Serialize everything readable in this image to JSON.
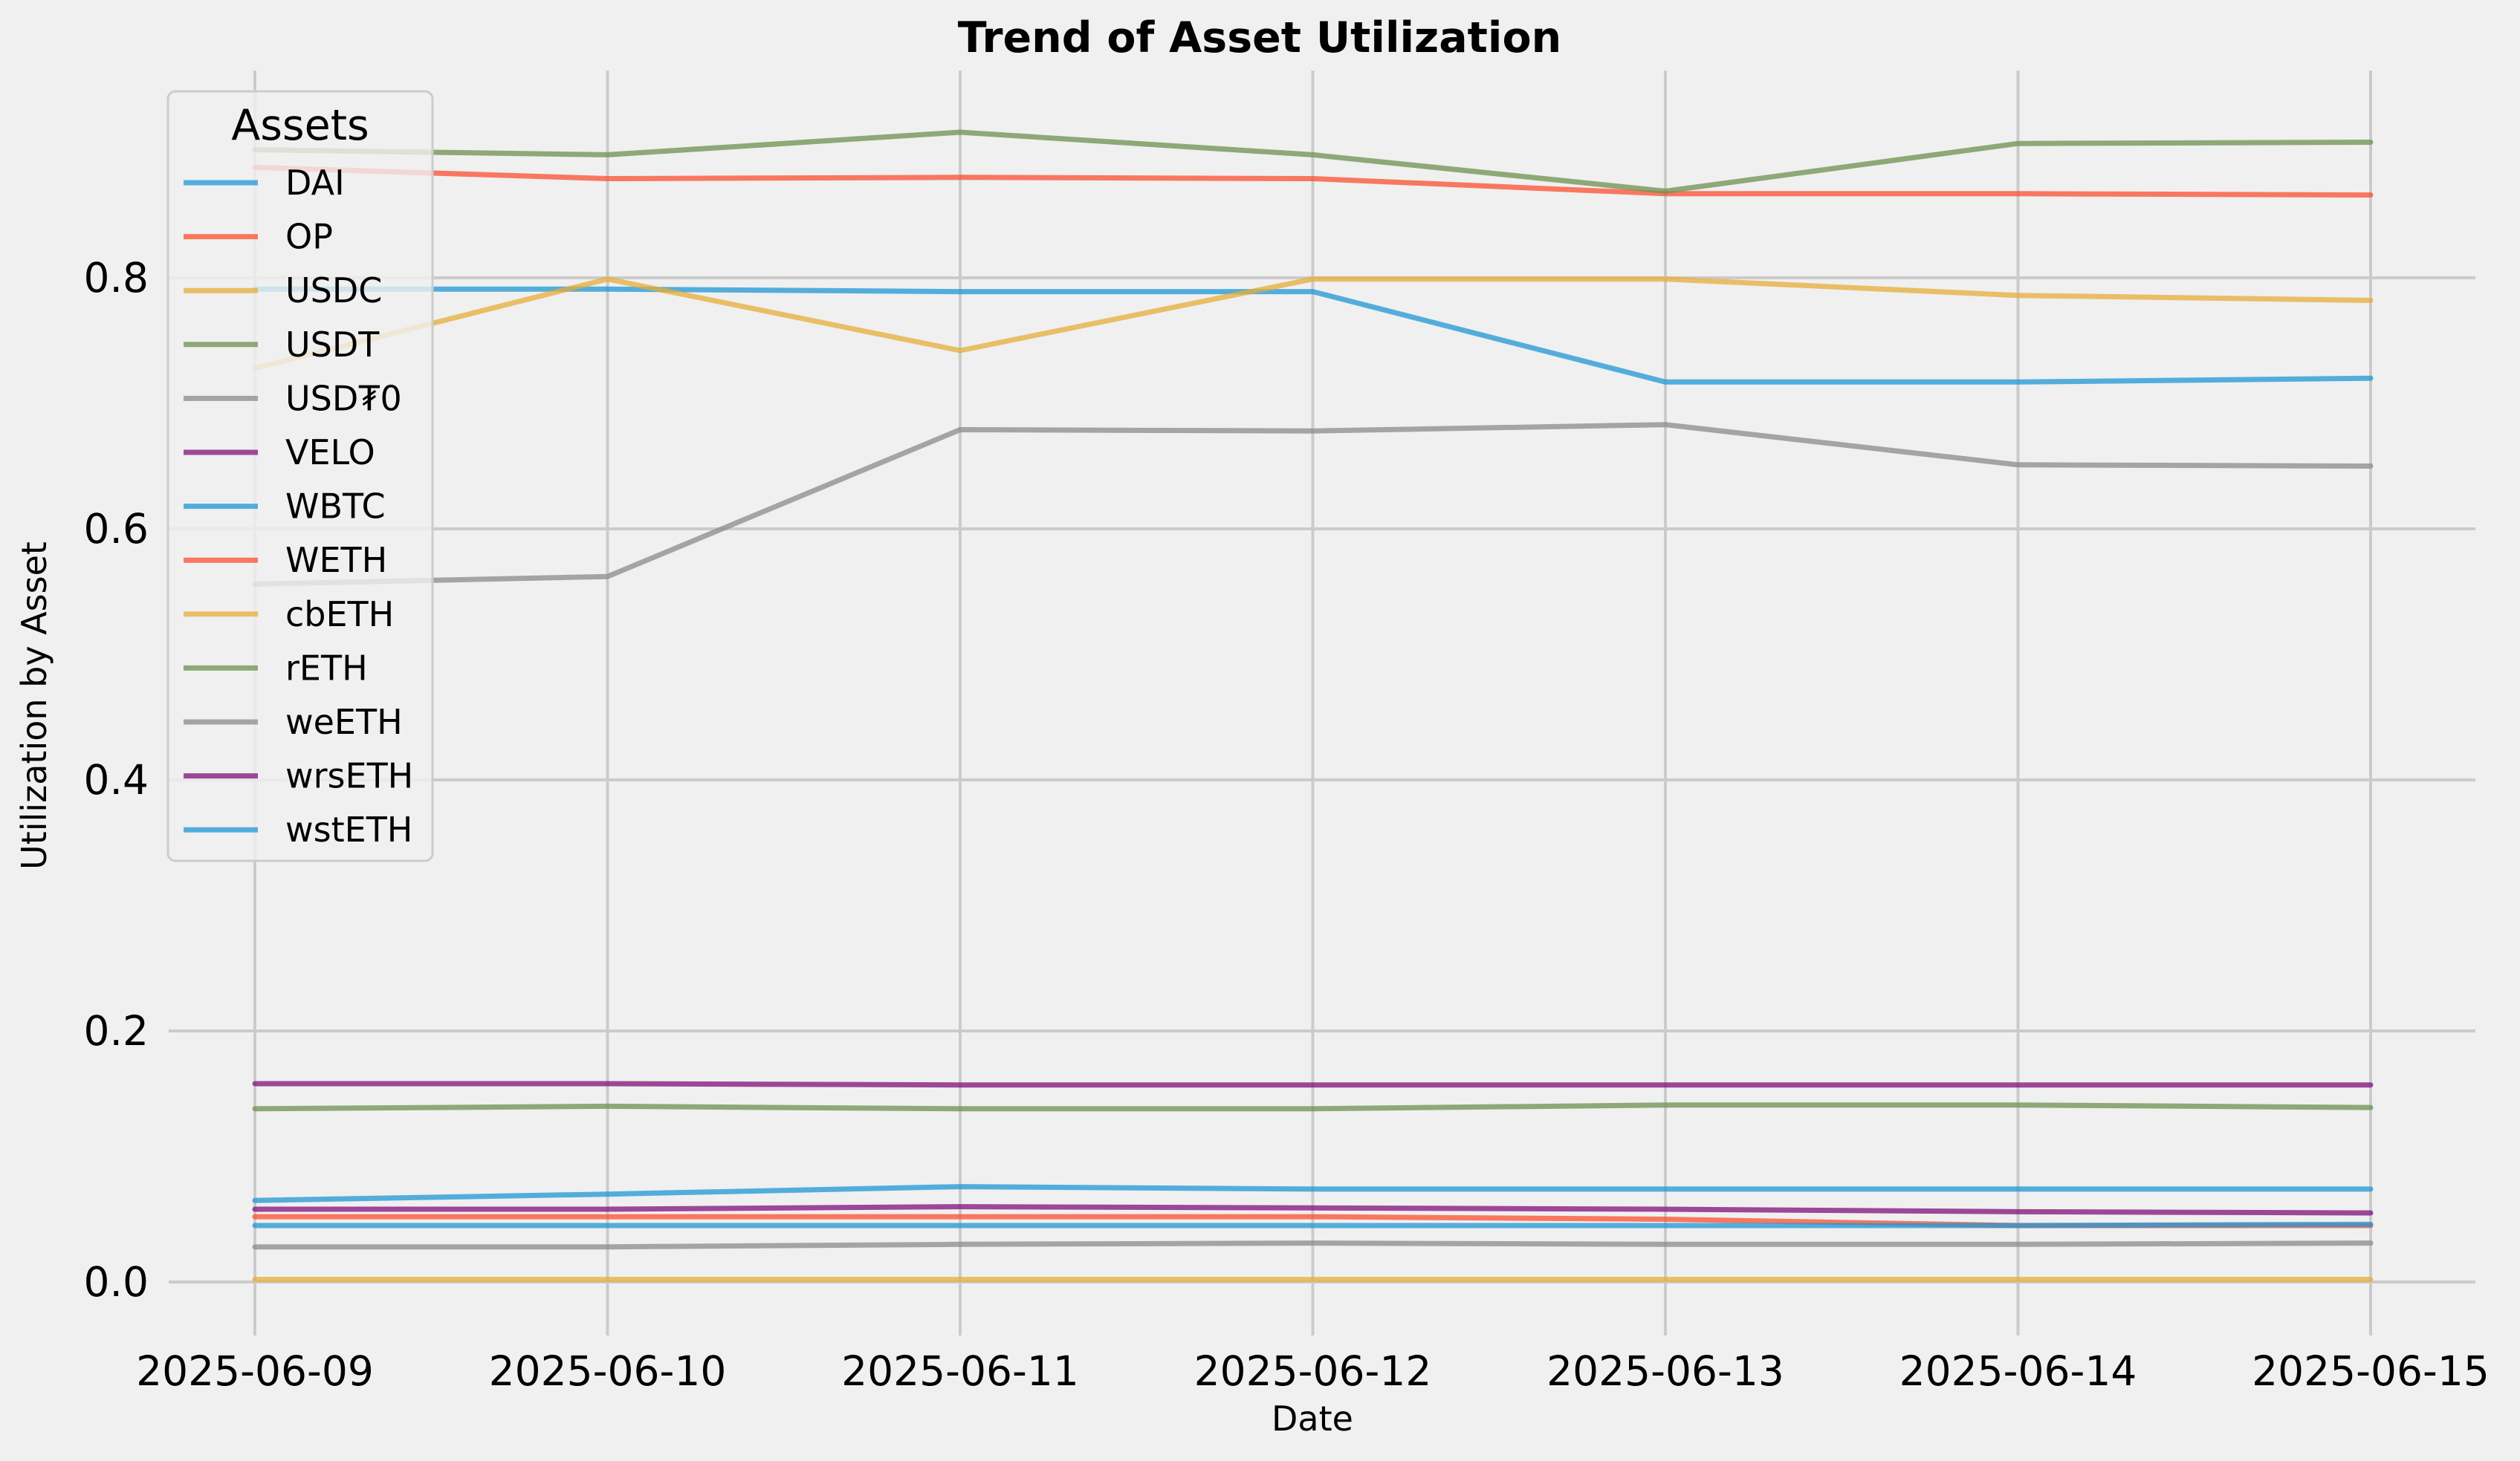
{
  "chart_data": {
    "type": "line",
    "title": "Trend of Asset Utilization",
    "xlabel": "Date",
    "ylabel": "Utilization by Asset",
    "x": [
      "2025-06-09",
      "2025-06-10",
      "2025-06-11",
      "2025-06-12",
      "2025-06-13",
      "2025-06-14",
      "2025-06-15"
    ],
    "y_ticks": [
      0.0,
      0.2,
      0.4,
      0.6,
      0.8
    ],
    "ylim": [
      -0.02,
      0.95
    ],
    "grid": true,
    "legend": {
      "title": "Assets",
      "placement": "upper-left"
    },
    "series": [
      {
        "name": "DAI",
        "color": "#1f97d4",
        "values": [
          0.065,
          0.07,
          0.076,
          0.074,
          0.074,
          0.074,
          0.074
        ]
      },
      {
        "name": "OP",
        "color": "#fc4f30",
        "values": [
          0.052,
          0.052,
          0.052,
          0.052,
          0.05,
          0.045,
          0.045
        ]
      },
      {
        "name": "USDC",
        "color": "#e5ae38",
        "values": [
          0.002,
          0.002,
          0.002,
          0.002,
          0.002,
          0.002,
          0.002
        ]
      },
      {
        "name": "USDT",
        "color": "#6d904f",
        "values": [
          0.138,
          0.14,
          0.138,
          0.138,
          0.141,
          0.141,
          0.139
        ]
      },
      {
        "name": "USD₮0",
        "color": "#8b8b8b",
        "values": [
          0.028,
          0.028,
          0.03,
          0.031,
          0.03,
          0.03,
          0.031
        ]
      },
      {
        "name": "VELO",
        "color": "#810f7c",
        "values": [
          0.158,
          0.158,
          0.157,
          0.157,
          0.157,
          0.157,
          0.157
        ]
      },
      {
        "name": "WBTC",
        "color": "#1f97d4",
        "values": [
          0.791,
          0.791,
          0.789,
          0.789,
          0.717,
          0.717,
          0.72
        ]
      },
      {
        "name": "WETH",
        "color": "#fc4f30",
        "values": [
          0.888,
          0.879,
          0.88,
          0.879,
          0.867,
          0.867,
          0.866
        ]
      },
      {
        "name": "cbETH",
        "color": "#e5ae38",
        "values": [
          0.728,
          0.799,
          0.742,
          0.799,
          0.799,
          0.786,
          0.782
        ]
      },
      {
        "name": "rETH",
        "color": "#6d904f",
        "values": [
          0.902,
          0.898,
          0.916,
          0.898,
          0.869,
          0.907,
          0.908
        ]
      },
      {
        "name": "weETH",
        "color": "#8b8b8b",
        "values": [
          0.556,
          0.562,
          0.679,
          0.678,
          0.683,
          0.651,
          0.65
        ]
      },
      {
        "name": "wrsETH",
        "color": "#810f7c",
        "values": [
          0.058,
          0.058,
          0.06,
          0.059,
          0.058,
          0.056,
          0.055
        ]
      },
      {
        "name": "wstETH",
        "color": "#1f97d4",
        "values": [
          0.045,
          0.045,
          0.045,
          0.045,
          0.045,
          0.045,
          0.046
        ]
      }
    ]
  }
}
